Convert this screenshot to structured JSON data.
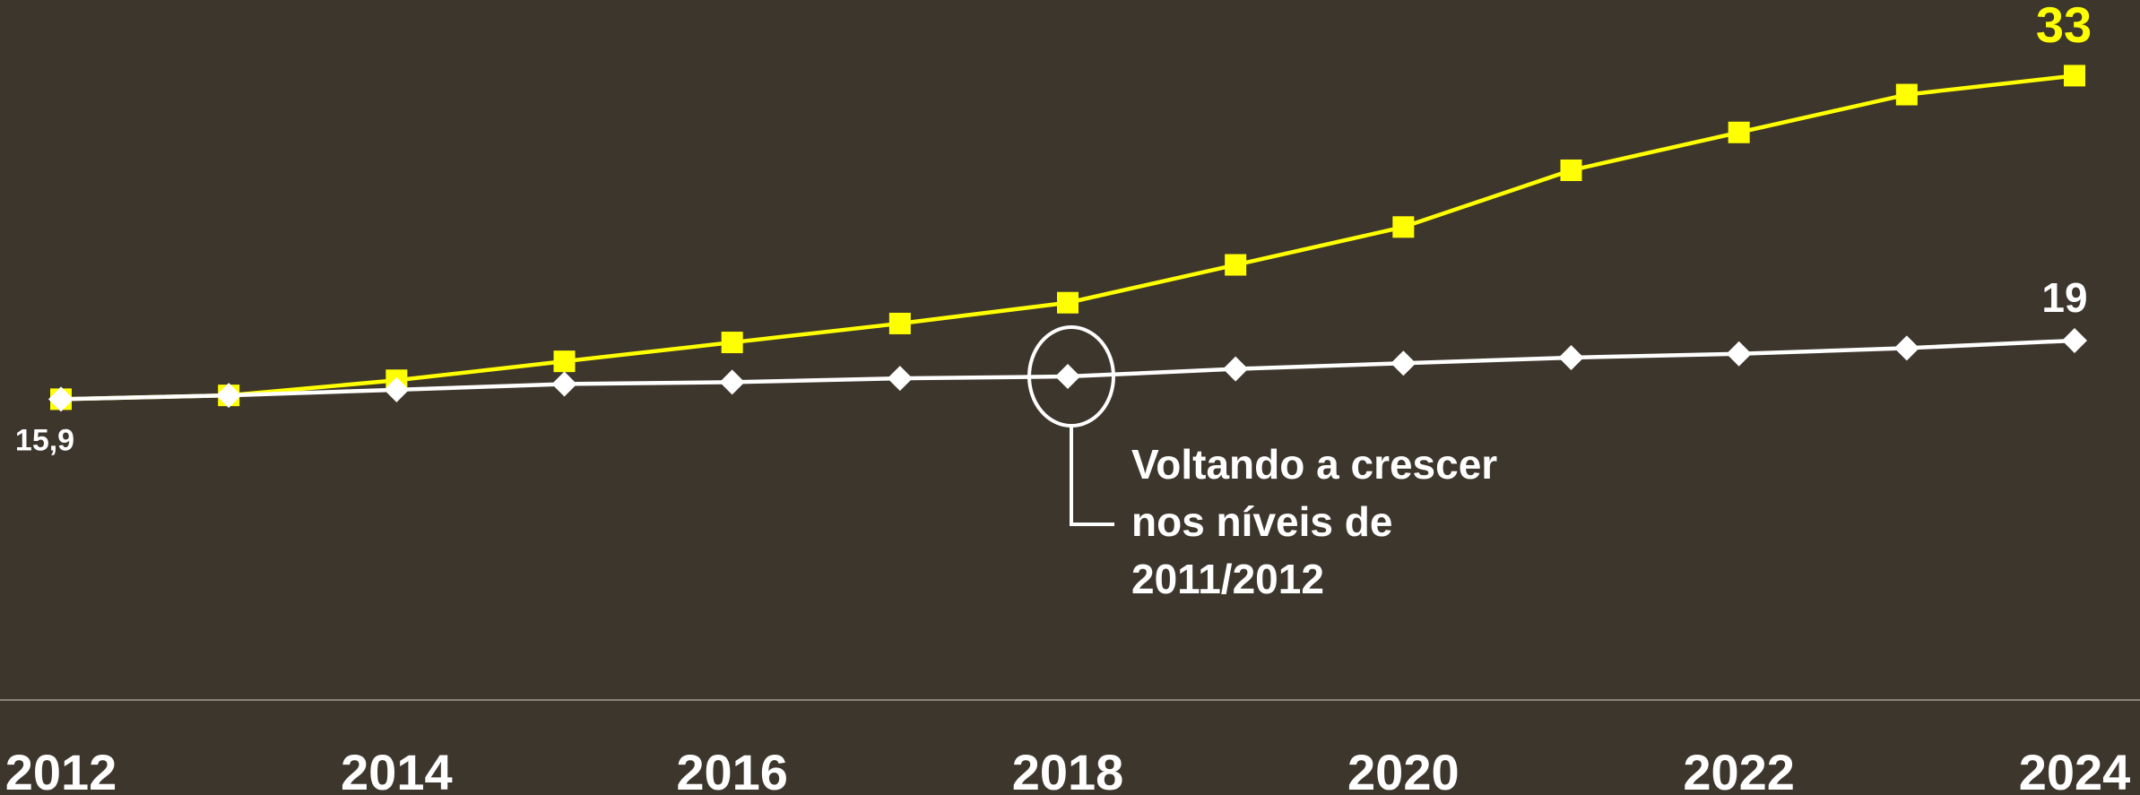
{
  "chart_data": {
    "type": "line",
    "x": [
      2012,
      2013,
      2014,
      2015,
      2016,
      2017,
      2018,
      2019,
      2020,
      2021,
      2022,
      2023,
      2024
    ],
    "xlim": [
      2012,
      2024
    ],
    "xticks": [
      2012,
      2014,
      2016,
      2018,
      2020,
      2022,
      2024
    ],
    "ylim": [
      0,
      37
    ],
    "series": [
      {
        "color": "#ffff00",
        "marker": "square",
        "values": [
          15.9,
          16.1,
          16.9,
          17.9,
          18.9,
          19.9,
          21.0,
          23.0,
          25.0,
          28.0,
          30.0,
          32.0,
          33
        ]
      },
      {
        "color": "#ffffff",
        "marker": "diamond",
        "values": [
          15.9,
          16.1,
          16.4,
          16.7,
          16.8,
          17.0,
          17.1,
          17.5,
          17.8,
          18.1,
          18.3,
          18.6,
          19
        ],
        "value_labels": [
          "15,9",
          null,
          null,
          null,
          null,
          null,
          null,
          null,
          null,
          null,
          null,
          null,
          null
        ]
      }
    ],
    "annotation": {
      "x": 2018,
      "series": 1,
      "lines": [
        "Voltando a crescer",
        "nos níveis de",
        "2011/2012"
      ]
    }
  }
}
